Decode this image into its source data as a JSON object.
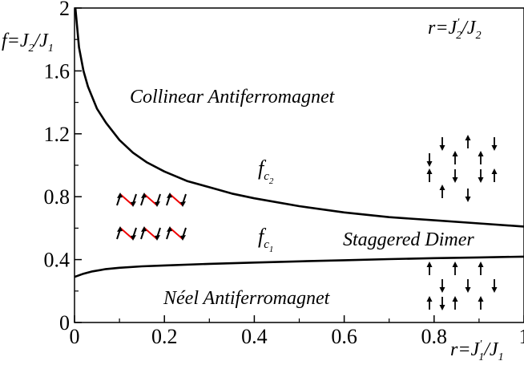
{
  "chart_data": {
    "type": "line",
    "xlim": [
      0,
      1
    ],
    "ylim": [
      0,
      2
    ],
    "x_ticks": [
      "0",
      "0.2",
      "0.4",
      "0.6",
      "0.8",
      "1"
    ],
    "y_ticks": [
      "0",
      "0.4",
      "0.8",
      "1.2",
      "1.6",
      "2"
    ],
    "xlabel": {
      "main": "r=J",
      "sup": "′",
      "sub1": "1",
      "mid": "/J",
      "sub2": "1"
    },
    "ylabel": {
      "main": "f=J",
      "sub1": "2",
      "mid": "/J",
      "sub2": "1"
    },
    "ratio_label": {
      "main": "r=J",
      "sup": "′",
      "sub1": "2",
      "mid": "/J",
      "sub2": "2"
    },
    "grid": false,
    "regions": {
      "collinear": "Collinear Antiferromagnet",
      "staggered": "Staggered Dimer",
      "neel": "Néel Antiferromagnet"
    },
    "series": [
      {
        "label": {
          "base": "f",
          "sub": "c",
          "subsub": "2"
        },
        "x": [
          0.002,
          0.01,
          0.02,
          0.03,
          0.05,
          0.07,
          0.1,
          0.13,
          0.16,
          0.2,
          0.25,
          0.3,
          0.35,
          0.4,
          0.5,
          0.6,
          0.7,
          0.8,
          0.9,
          1.0
        ],
        "y": [
          2.0,
          1.75,
          1.6,
          1.5,
          1.36,
          1.27,
          1.16,
          1.08,
          1.02,
          0.96,
          0.9,
          0.86,
          0.82,
          0.79,
          0.74,
          0.7,
          0.67,
          0.65,
          0.63,
          0.61
        ]
      },
      {
        "label": {
          "base": "f",
          "sub": "c",
          "subsub": "1"
        },
        "x": [
          0.0,
          0.01,
          0.02,
          0.04,
          0.07,
          0.1,
          0.15,
          0.2,
          0.3,
          0.4,
          0.5,
          0.6,
          0.7,
          0.8,
          0.9,
          1.0
        ],
        "y": [
          0.29,
          0.3,
          0.31,
          0.325,
          0.34,
          0.348,
          0.357,
          0.363,
          0.373,
          0.381,
          0.389,
          0.396,
          0.403,
          0.409,
          0.414,
          0.419
        ]
      }
    ]
  }
}
